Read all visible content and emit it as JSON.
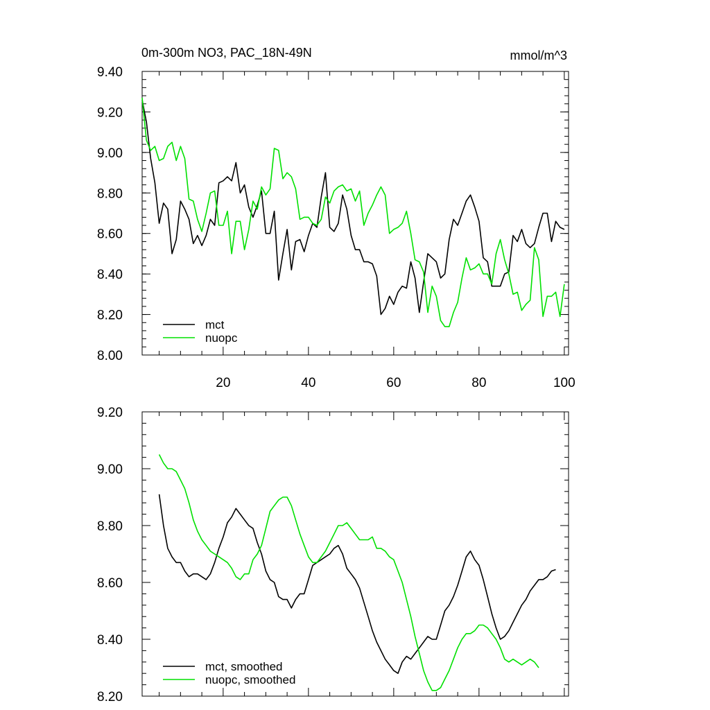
{
  "chart_data": [
    {
      "type": "line",
      "title_left": "0m-300m NO3, PAC_18N-49N",
      "title_right": "mmol/m^3",
      "xlim": [
        1,
        101
      ],
      "ylim": [
        8.0,
        9.4
      ],
      "xticks": [
        20,
        40,
        60,
        80,
        100
      ],
      "yticks": [
        8.0,
        8.2,
        8.4,
        8.6,
        8.8,
        9.0,
        9.2,
        9.4
      ],
      "ytick_labels": [
        "8.00",
        "8.20",
        "8.40",
        "8.60",
        "8.80",
        "9.00",
        "9.20",
        "9.40"
      ],
      "xtick_labels": [
        "20",
        "40",
        "60",
        "80",
        "100"
      ],
      "legend_position": "bottom-left",
      "series": [
        {
          "name": "mct",
          "color": "#000000",
          "x_start": 1,
          "values": [
            9.26,
            9.15,
            8.97,
            8.85,
            8.65,
            8.75,
            8.72,
            8.5,
            8.57,
            8.76,
            8.72,
            8.67,
            8.55,
            8.59,
            8.54,
            8.59,
            8.67,
            8.64,
            8.85,
            8.86,
            8.88,
            8.86,
            8.95,
            8.8,
            8.84,
            8.73,
            8.68,
            8.74,
            8.81,
            8.6,
            8.6,
            8.71,
            8.37,
            8.5,
            8.62,
            8.42,
            8.56,
            8.57,
            8.51,
            8.59,
            8.65,
            8.63,
            8.78,
            8.9,
            8.63,
            8.61,
            8.65,
            8.79,
            8.72,
            8.59,
            8.52,
            8.52,
            8.46,
            8.46,
            8.45,
            8.39,
            8.2,
            8.23,
            8.29,
            8.25,
            8.31,
            8.34,
            8.33,
            8.46,
            8.38,
            8.21,
            8.36,
            8.5,
            8.48,
            8.46,
            8.38,
            8.4,
            8.57,
            8.67,
            8.64,
            8.7,
            8.76,
            8.79,
            8.73,
            8.66,
            8.48,
            8.46,
            8.34,
            8.34,
            8.34,
            8.4,
            8.41,
            8.59,
            8.56,
            8.62,
            8.55,
            8.53,
            8.55,
            8.63,
            8.7,
            8.7,
            8.56,
            8.66,
            8.63,
            8.62
          ]
        },
        {
          "name": "nuopc",
          "color": "#00e000",
          "x_start": 1,
          "values": [
            9.27,
            9.06,
            9.01,
            9.03,
            8.96,
            8.97,
            9.03,
            9.05,
            8.96,
            9.03,
            8.97,
            8.77,
            8.76,
            8.67,
            8.61,
            8.7,
            8.8,
            8.81,
            8.64,
            8.64,
            8.71,
            8.5,
            8.66,
            8.66,
            8.52,
            8.62,
            8.76,
            8.72,
            8.83,
            8.79,
            8.82,
            9.02,
            9.01,
            8.87,
            8.9,
            8.88,
            8.82,
            8.67,
            8.68,
            8.68,
            8.65,
            8.64,
            8.67,
            8.78,
            8.75,
            8.81,
            8.83,
            8.84,
            8.81,
            8.82,
            8.76,
            8.81,
            8.64,
            8.7,
            8.74,
            8.79,
            8.83,
            8.79,
            8.6,
            8.62,
            8.63,
            8.65,
            8.71,
            8.6,
            8.47,
            8.46,
            8.41,
            8.21,
            8.34,
            8.29,
            8.17,
            8.14,
            8.14,
            8.21,
            8.26,
            8.38,
            8.48,
            8.42,
            8.43,
            8.45,
            8.4,
            8.4,
            8.35,
            8.5,
            8.57,
            8.47,
            8.4,
            8.3,
            8.31,
            8.22,
            8.25,
            8.27,
            8.53,
            8.47,
            8.19,
            8.29,
            8.29,
            8.31,
            8.19,
            8.35
          ]
        }
      ]
    },
    {
      "type": "line",
      "xlim": [
        1,
        101
      ],
      "ylim": [
        8.2,
        9.2
      ],
      "xticks": [
        20,
        40,
        60,
        80,
        100
      ],
      "yticks": [
        8.2,
        8.4,
        8.6,
        8.8,
        9.0,
        9.2
      ],
      "ytick_labels": [
        "8.20",
        "8.40",
        "8.60",
        "8.80",
        "9.00",
        "9.20"
      ],
      "legend_position": "bottom-left",
      "series": [
        {
          "name": "mct, smoothed",
          "color": "#000000",
          "x_start": 5,
          "values": [
            8.91,
            8.8,
            8.72,
            8.69,
            8.67,
            8.67,
            8.64,
            8.62,
            8.63,
            8.63,
            8.62,
            8.61,
            8.63,
            8.67,
            8.72,
            8.76,
            8.81,
            8.83,
            8.86,
            8.84,
            8.82,
            8.8,
            8.79,
            8.74,
            8.7,
            8.64,
            8.61,
            8.6,
            8.55,
            8.54,
            8.54,
            8.51,
            8.54,
            8.56,
            8.56,
            8.61,
            8.66,
            8.67,
            8.68,
            8.69,
            8.7,
            8.72,
            8.73,
            8.7,
            8.65,
            8.63,
            8.61,
            8.58,
            8.53,
            8.48,
            8.43,
            8.39,
            8.36,
            8.33,
            8.31,
            8.29,
            8.28,
            8.32,
            8.34,
            8.33,
            8.35,
            8.37,
            8.39,
            8.41,
            8.4,
            8.4,
            8.45,
            8.5,
            8.52,
            8.55,
            8.59,
            8.64,
            8.69,
            8.71,
            8.68,
            8.66,
            8.61,
            8.55,
            8.49,
            8.44,
            8.4,
            8.41,
            8.43,
            8.46,
            8.49,
            8.52,
            8.54,
            8.57,
            8.59,
            8.61,
            8.61,
            8.62,
            8.64,
            8.645
          ]
        },
        {
          "name": "nuopc, smoothed",
          "color": "#00e000",
          "x_start": 5,
          "values": [
            9.05,
            9.02,
            9.0,
            9.0,
            8.99,
            8.96,
            8.93,
            8.88,
            8.82,
            8.78,
            8.75,
            8.73,
            8.71,
            8.7,
            8.69,
            8.68,
            8.67,
            8.65,
            8.62,
            8.61,
            8.63,
            8.63,
            8.68,
            8.7,
            8.73,
            8.79,
            8.85,
            8.87,
            8.89,
            8.9,
            8.9,
            8.87,
            8.82,
            8.77,
            8.73,
            8.69,
            8.67,
            8.67,
            8.69,
            8.71,
            8.74,
            8.77,
            8.8,
            8.8,
            8.81,
            8.79,
            8.77,
            8.75,
            8.75,
            8.75,
            8.76,
            8.72,
            8.72,
            8.71,
            8.69,
            8.68,
            8.64,
            8.6,
            8.54,
            8.48,
            8.41,
            8.35,
            8.29,
            8.25,
            8.22,
            8.22,
            8.23,
            8.26,
            8.29,
            8.33,
            8.37,
            8.4,
            8.42,
            8.42,
            8.43,
            8.45,
            8.45,
            8.44,
            8.42,
            8.4,
            8.37,
            8.33,
            8.32,
            8.33,
            8.32,
            8.31,
            8.32,
            8.33,
            8.32,
            8.3
          ]
        }
      ]
    }
  ]
}
